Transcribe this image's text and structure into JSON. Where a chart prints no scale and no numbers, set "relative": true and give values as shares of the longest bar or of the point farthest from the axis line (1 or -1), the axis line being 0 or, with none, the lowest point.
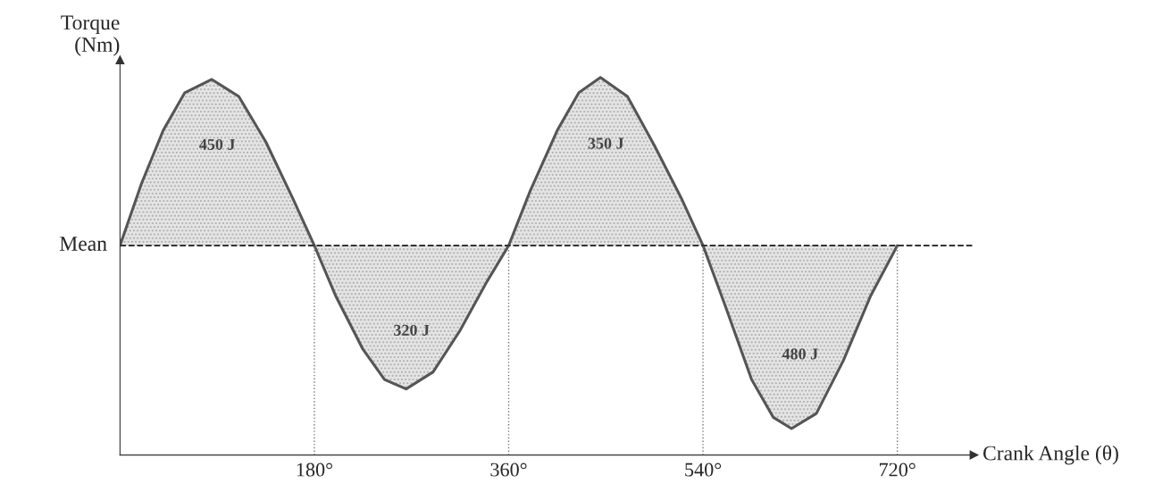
{
  "chart_data": {
    "type": "area",
    "relative": true,
    "xlabel": "Crank Angle (θ)",
    "ylabel": "Torque\n(Nm)",
    "xlim": [
      0,
      791
    ],
    "xticks": [
      {
        "value": 180,
        "label": "180°"
      },
      {
        "value": 360,
        "label": "360°"
      },
      {
        "value": 540,
        "label": "540°"
      },
      {
        "value": 720,
        "label": "720°"
      }
    ],
    "series": [
      {
        "color": "#555555",
        "x": [
          0,
          20,
          40,
          60,
          85,
          110,
          135,
          160,
          180,
          200,
          225,
          245,
          265,
          290,
          315,
          340,
          360,
          380,
          405,
          425,
          445,
          470,
          495,
          520,
          540,
          560,
          585,
          605,
          622,
          645,
          670,
          695,
          720
        ],
        "values": [
          0.555,
          0.72,
          0.86,
          0.96,
          0.995,
          0.95,
          0.83,
          0.68,
          0.555,
          0.42,
          0.28,
          0.2,
          0.175,
          0.22,
          0.33,
          0.46,
          0.555,
          0.7,
          0.86,
          0.96,
          1.0,
          0.95,
          0.82,
          0.68,
          0.555,
          0.4,
          0.2,
          0.1,
          0.07,
          0.11,
          0.25,
          0.42,
          0.555
        ]
      }
    ],
    "ref_lines": [
      {
        "axis": "y",
        "value": 0.555,
        "label": "Mean",
        "line_style": "dashed",
        "color": "#333333"
      },
      {
        "axis": "x",
        "value": 180,
        "line_style": "dotted",
        "color": "#777777"
      },
      {
        "axis": "x",
        "value": 360,
        "line_style": "dotted",
        "color": "#777777"
      },
      {
        "axis": "x",
        "value": 540,
        "line_style": "dotted",
        "color": "#777777"
      },
      {
        "axis": "x",
        "value": 720,
        "line_style": "dotted",
        "color": "#777777"
      }
    ],
    "annotations": [
      "450 J",
      "320 J",
      "350 J",
      "480 J"
    ],
    "grid": false,
    "legend": false
  }
}
